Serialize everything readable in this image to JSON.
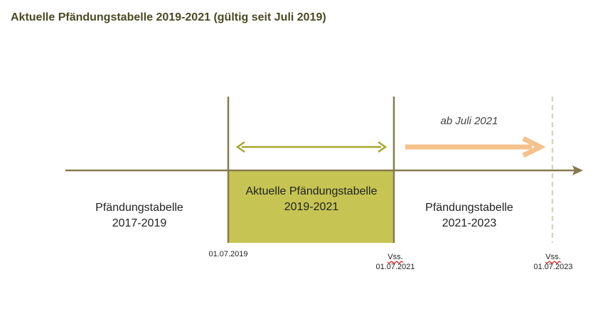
{
  "title": "Aktuelle Pfändungstabelle 2019-2021 (gültig seit Juli 2019)",
  "periods": [
    {
      "line1": "Pfändungstabelle",
      "line2": "2017-2019"
    },
    {
      "line1": "Aktuelle Pfändungstabelle",
      "line2": "2019-2021"
    },
    {
      "line1": "Pfändungstabelle",
      "line2": "2021-2023"
    }
  ],
  "future_label": "ab Juli 2021",
  "dates": [
    {
      "prefix": "",
      "date": "01.07.2019"
    },
    {
      "prefix": "Vss.",
      "date": "01.07.2021"
    },
    {
      "prefix": "Vss.",
      "date": "01.07.2023"
    }
  ],
  "colors": {
    "title": "#4a4a24",
    "axis": "#857a4e",
    "current_period_fill": "#c6c453",
    "current_range_arrow": "#a5a82a",
    "future_arrow": "#f5c18c",
    "future_boundary": "#d8d4c0"
  }
}
